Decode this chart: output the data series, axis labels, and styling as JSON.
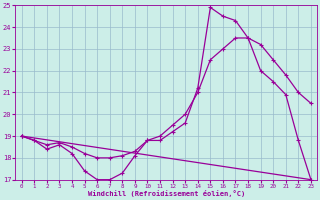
{
  "xlabel": "Windchill (Refroidissement éolien,°C)",
  "bg_color": "#cceee8",
  "grid_color": "#99bbcc",
  "line_color": "#990099",
  "xlim": [
    -0.5,
    23.5
  ],
  "ylim": [
    17,
    25
  ],
  "xticks": [
    0,
    1,
    2,
    3,
    4,
    5,
    6,
    7,
    8,
    9,
    10,
    11,
    12,
    13,
    14,
    15,
    16,
    17,
    18,
    19,
    20,
    21,
    22,
    23
  ],
  "yticks": [
    17,
    18,
    19,
    20,
    21,
    22,
    23,
    24,
    25
  ],
  "line1_x": [
    0,
    1,
    2,
    3,
    4,
    5,
    6,
    7,
    8,
    9,
    10,
    11,
    12,
    13,
    14,
    15,
    16,
    17,
    18,
    19,
    20,
    21,
    22,
    23
  ],
  "line1_y": [
    19.0,
    18.8,
    18.4,
    18.6,
    18.2,
    17.4,
    17.0,
    17.0,
    17.3,
    18.1,
    18.8,
    18.8,
    19.2,
    19.6,
    21.2,
    24.9,
    24.5,
    24.3,
    23.5,
    22.0,
    21.5,
    20.9,
    18.8,
    17.0
  ],
  "line2_x": [
    0,
    1,
    2,
    3,
    4,
    5,
    6,
    7,
    8,
    9,
    10,
    11,
    12,
    13,
    14,
    15,
    16,
    17,
    18,
    19,
    20,
    21,
    22,
    23
  ],
  "line2_y": [
    19.0,
    18.8,
    18.6,
    18.7,
    18.5,
    18.2,
    18.0,
    18.0,
    18.1,
    18.3,
    18.8,
    19.0,
    19.5,
    20.0,
    21.0,
    22.5,
    23.0,
    23.5,
    23.5,
    23.2,
    22.5,
    21.8,
    21.0,
    20.5
  ],
  "line3_x": [
    0,
    23
  ],
  "line3_y": [
    19.0,
    17.0
  ]
}
